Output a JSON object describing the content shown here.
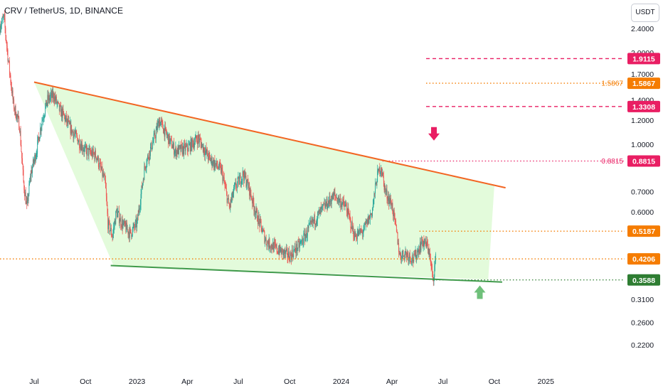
{
  "header": {
    "symbol_title": "CRV / TetherUS, 1D, BINANCE",
    "currency_button": "USDT"
  },
  "colors": {
    "background": "#ffffff",
    "up_candle": "#26a69a",
    "down_candle": "#ef5350",
    "resistance_line": "#f26522",
    "support_line": "#3f9a4a",
    "wedge_fill": "#e3fbdb",
    "pink_level": "#e91e63",
    "orange_level": "#f57c00",
    "green_level": "#2e7d32",
    "green_arrow": "#6fc07a",
    "pink_arrow": "#e91e63"
  },
  "chart_data": {
    "type": "candlestick",
    "title": "CRV / TetherUS, 1D, BINANCE",
    "y_scale": "log",
    "ylim": [
      0.2,
      2.8
    ],
    "y_ticks": [
      2.4,
      2.0,
      1.7,
      1.4,
      1.2,
      1.0,
      0.7,
      0.6,
      0.31,
      0.26,
      0.22
    ],
    "y_tick_labels": [
      "2.4000",
      "2.0000",
      "1.7000",
      "1.4000",
      "1.2000",
      "1.0000",
      "0.7000",
      "0.6000",
      "0.3100",
      "0.2600",
      "0.2200"
    ],
    "x_ticks": [
      {
        "date": "2022-07-01",
        "label": "Jul"
      },
      {
        "date": "2022-10-01",
        "label": "Oct"
      },
      {
        "date": "2023-01-01",
        "label": "2023"
      },
      {
        "date": "2023-04-01",
        "label": "Apr"
      },
      {
        "date": "2023-07-01",
        "label": "Jul"
      },
      {
        "date": "2023-10-01",
        "label": "Oct"
      },
      {
        "date": "2024-01-01",
        "label": "2024"
      },
      {
        "date": "2024-04-01",
        "label": "Apr"
      },
      {
        "date": "2024-07-01",
        "label": "Jul"
      },
      {
        "date": "2024-10-01",
        "label": "Oct"
      },
      {
        "date": "2025-01-01",
        "label": "2025"
      }
    ],
    "xlim": [
      "2022-05-01",
      "2025-04-01"
    ],
    "price_path": [
      [
        "2022-05-01",
        2.45
      ],
      [
        "2022-05-08",
        2.6
      ],
      [
        "2022-05-15",
        1.95
      ],
      [
        "2022-05-25",
        1.35
      ],
      [
        "2022-06-05",
        1.15
      ],
      [
        "2022-06-12",
        0.75
      ],
      [
        "2022-06-18",
        0.62
      ],
      [
        "2022-06-25",
        0.8
      ],
      [
        "2022-07-05",
        0.95
      ],
      [
        "2022-07-15",
        1.2
      ],
      [
        "2022-07-25",
        1.4
      ],
      [
        "2022-08-05",
        1.45
      ],
      [
        "2022-08-15",
        1.3
      ],
      [
        "2022-08-22",
        1.25
      ],
      [
        "2022-09-01",
        1.15
      ],
      [
        "2022-09-15",
        1.05
      ],
      [
        "2022-10-01",
        0.95
      ],
      [
        "2022-10-20",
        0.92
      ],
      [
        "2022-11-05",
        0.75
      ],
      [
        "2022-11-10",
        0.55
      ],
      [
        "2022-11-18",
        0.5
      ],
      [
        "2022-11-25",
        0.6
      ],
      [
        "2022-12-05",
        0.55
      ],
      [
        "2022-12-20",
        0.51
      ],
      [
        "2023-01-01",
        0.55
      ],
      [
        "2023-01-15",
        0.85
      ],
      [
        "2023-02-01",
        1.05
      ],
      [
        "2023-02-10",
        1.2
      ],
      [
        "2023-02-20",
        1.1
      ],
      [
        "2023-03-10",
        0.95
      ],
      [
        "2023-04-01",
        0.97
      ],
      [
        "2023-04-20",
        1.05
      ],
      [
        "2023-05-10",
        0.9
      ],
      [
        "2023-06-01",
        0.82
      ],
      [
        "2023-06-15",
        0.62
      ],
      [
        "2023-06-25",
        0.72
      ],
      [
        "2023-07-10",
        0.8
      ],
      [
        "2023-07-20",
        0.72
      ],
      [
        "2023-08-01",
        0.6
      ],
      [
        "2023-08-20",
        0.48
      ],
      [
        "2023-09-10",
        0.45
      ],
      [
        "2023-10-01",
        0.43
      ],
      [
        "2023-10-20",
        0.47
      ],
      [
        "2023-11-10",
        0.55
      ],
      [
        "2023-12-01",
        0.62
      ],
      [
        "2023-12-20",
        0.68
      ],
      [
        "2024-01-10",
        0.62
      ],
      [
        "2024-01-25",
        0.5
      ],
      [
        "2024-02-10",
        0.52
      ],
      [
        "2024-02-25",
        0.6
      ],
      [
        "2024-03-05",
        0.78
      ],
      [
        "2024-03-12",
        0.85
      ],
      [
        "2024-03-20",
        0.7
      ],
      [
        "2024-04-01",
        0.63
      ],
      [
        "2024-04-10",
        0.5
      ],
      [
        "2024-04-15",
        0.43
      ],
      [
        "2024-04-25",
        0.44
      ],
      [
        "2024-05-10",
        0.42
      ],
      [
        "2024-05-25",
        0.48
      ],
      [
        "2024-06-05",
        0.46
      ],
      [
        "2024-06-13",
        0.36
      ],
      [
        "2024-06-18",
        0.42
      ]
    ],
    "wedge": {
      "resistance": [
        [
          "2022-07-01",
          1.6
        ],
        [
          "2024-10-21",
          0.72
        ]
      ],
      "support": [
        [
          "2022-11-15",
          0.4
        ],
        [
          "2024-10-15",
          0.353
        ]
      ],
      "fill_polygon": [
        [
          "2022-07-01",
          1.6
        ],
        [
          "2024-10-01",
          0.73
        ],
        [
          "2024-09-20",
          0.36
        ],
        [
          "2022-11-20",
          0.4
        ]
      ]
    },
    "levels": [
      {
        "value": 1.9115,
        "label": "1.9115",
        "style": "dashed",
        "color": "#e91e63",
        "line_from": "2024-06-01"
      },
      {
        "value": 1.5867,
        "label": "1.5867",
        "style": "dotted",
        "color": "#f57c00",
        "line_from": "2024-06-01",
        "inline_label": "1.5867"
      },
      {
        "value": 1.3308,
        "label": "1.3308",
        "style": "dashed",
        "color": "#e91e63",
        "line_from": "2024-06-01"
      },
      {
        "value": 0.8815,
        "label": "0.8815",
        "style": "dotted",
        "color": "#e91e63",
        "line_from": "2024-03-15",
        "inline_label": "0.8815"
      },
      {
        "value": 0.5187,
        "label": "0.5187",
        "style": "dotted",
        "color": "#f57c00",
        "line_from": "2024-05-20"
      },
      {
        "value": 0.4206,
        "label": "0.4206",
        "style": "dotted",
        "color": "#f57c00",
        "line_from": "2022-05-01"
      },
      {
        "value": 0.3588,
        "label": "0.3588",
        "style": "dotted",
        "color": "#2e7d32",
        "line_from": "2024-06-13"
      }
    ],
    "arrows": [
      {
        "direction": "down",
        "date": "2024-06-15",
        "value": 1.08,
        "color": "#e91e63"
      },
      {
        "direction": "up",
        "date": "2024-09-05",
        "value": 0.328,
        "color": "#6fc07a"
      }
    ]
  }
}
